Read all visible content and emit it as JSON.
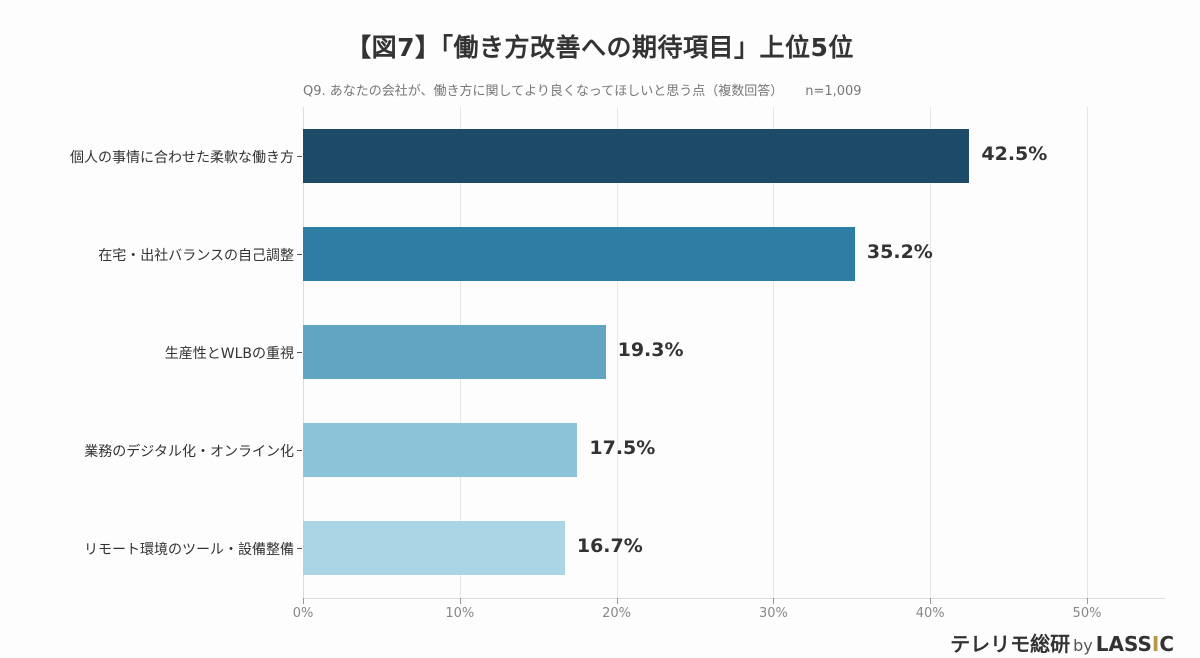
{
  "header": {
    "title": "【図7】「働き方改善への期待項目」上位5位",
    "question": "Q9. あなたの会社が、働き方に関してより良くなってほしいと思う点（複数回答）",
    "sample_size": "n=1,009"
  },
  "brand": {
    "name": "テレリモ総研",
    "by": "by",
    "company_pre": "LASS",
    "company_accent": "I",
    "company_post": "C",
    "accent_color": "#b8964a"
  },
  "chart_data": {
    "type": "bar",
    "orientation": "horizontal",
    "title": "【図7】「働き方改善への期待項目」上位5位",
    "subtitle": "Q9. あなたの会社が、働き方に関してより良くなってほしいと思う点（複数回答） n=1,009",
    "categories": [
      "個人の事情に合わせた柔軟な働き方",
      "在宅・出社バランスの自己調整",
      "生産性とWLBの重視",
      "業務のデジタル化・オンライン化",
      "リモート環境のツール・設備整備"
    ],
    "values": [
      42.5,
      35.2,
      19.3,
      17.5,
      16.7
    ],
    "value_labels": [
      "42.5%",
      "35.2%",
      "19.3%",
      "17.5%",
      "16.7%"
    ],
    "colors": [
      "#1d4a66",
      "#2e7ea3",
      "#62a5c3",
      "#8cc3d8",
      "#aad5e4"
    ],
    "xlabel": "",
    "ylabel": "",
    "xlim": [
      0,
      55
    ],
    "xticks": [
      0,
      10,
      20,
      30,
      40,
      50
    ],
    "xtick_labels": [
      "0%",
      "10%",
      "20%",
      "30%",
      "40%",
      "50%"
    ],
    "grid": true,
    "legend": null
  }
}
